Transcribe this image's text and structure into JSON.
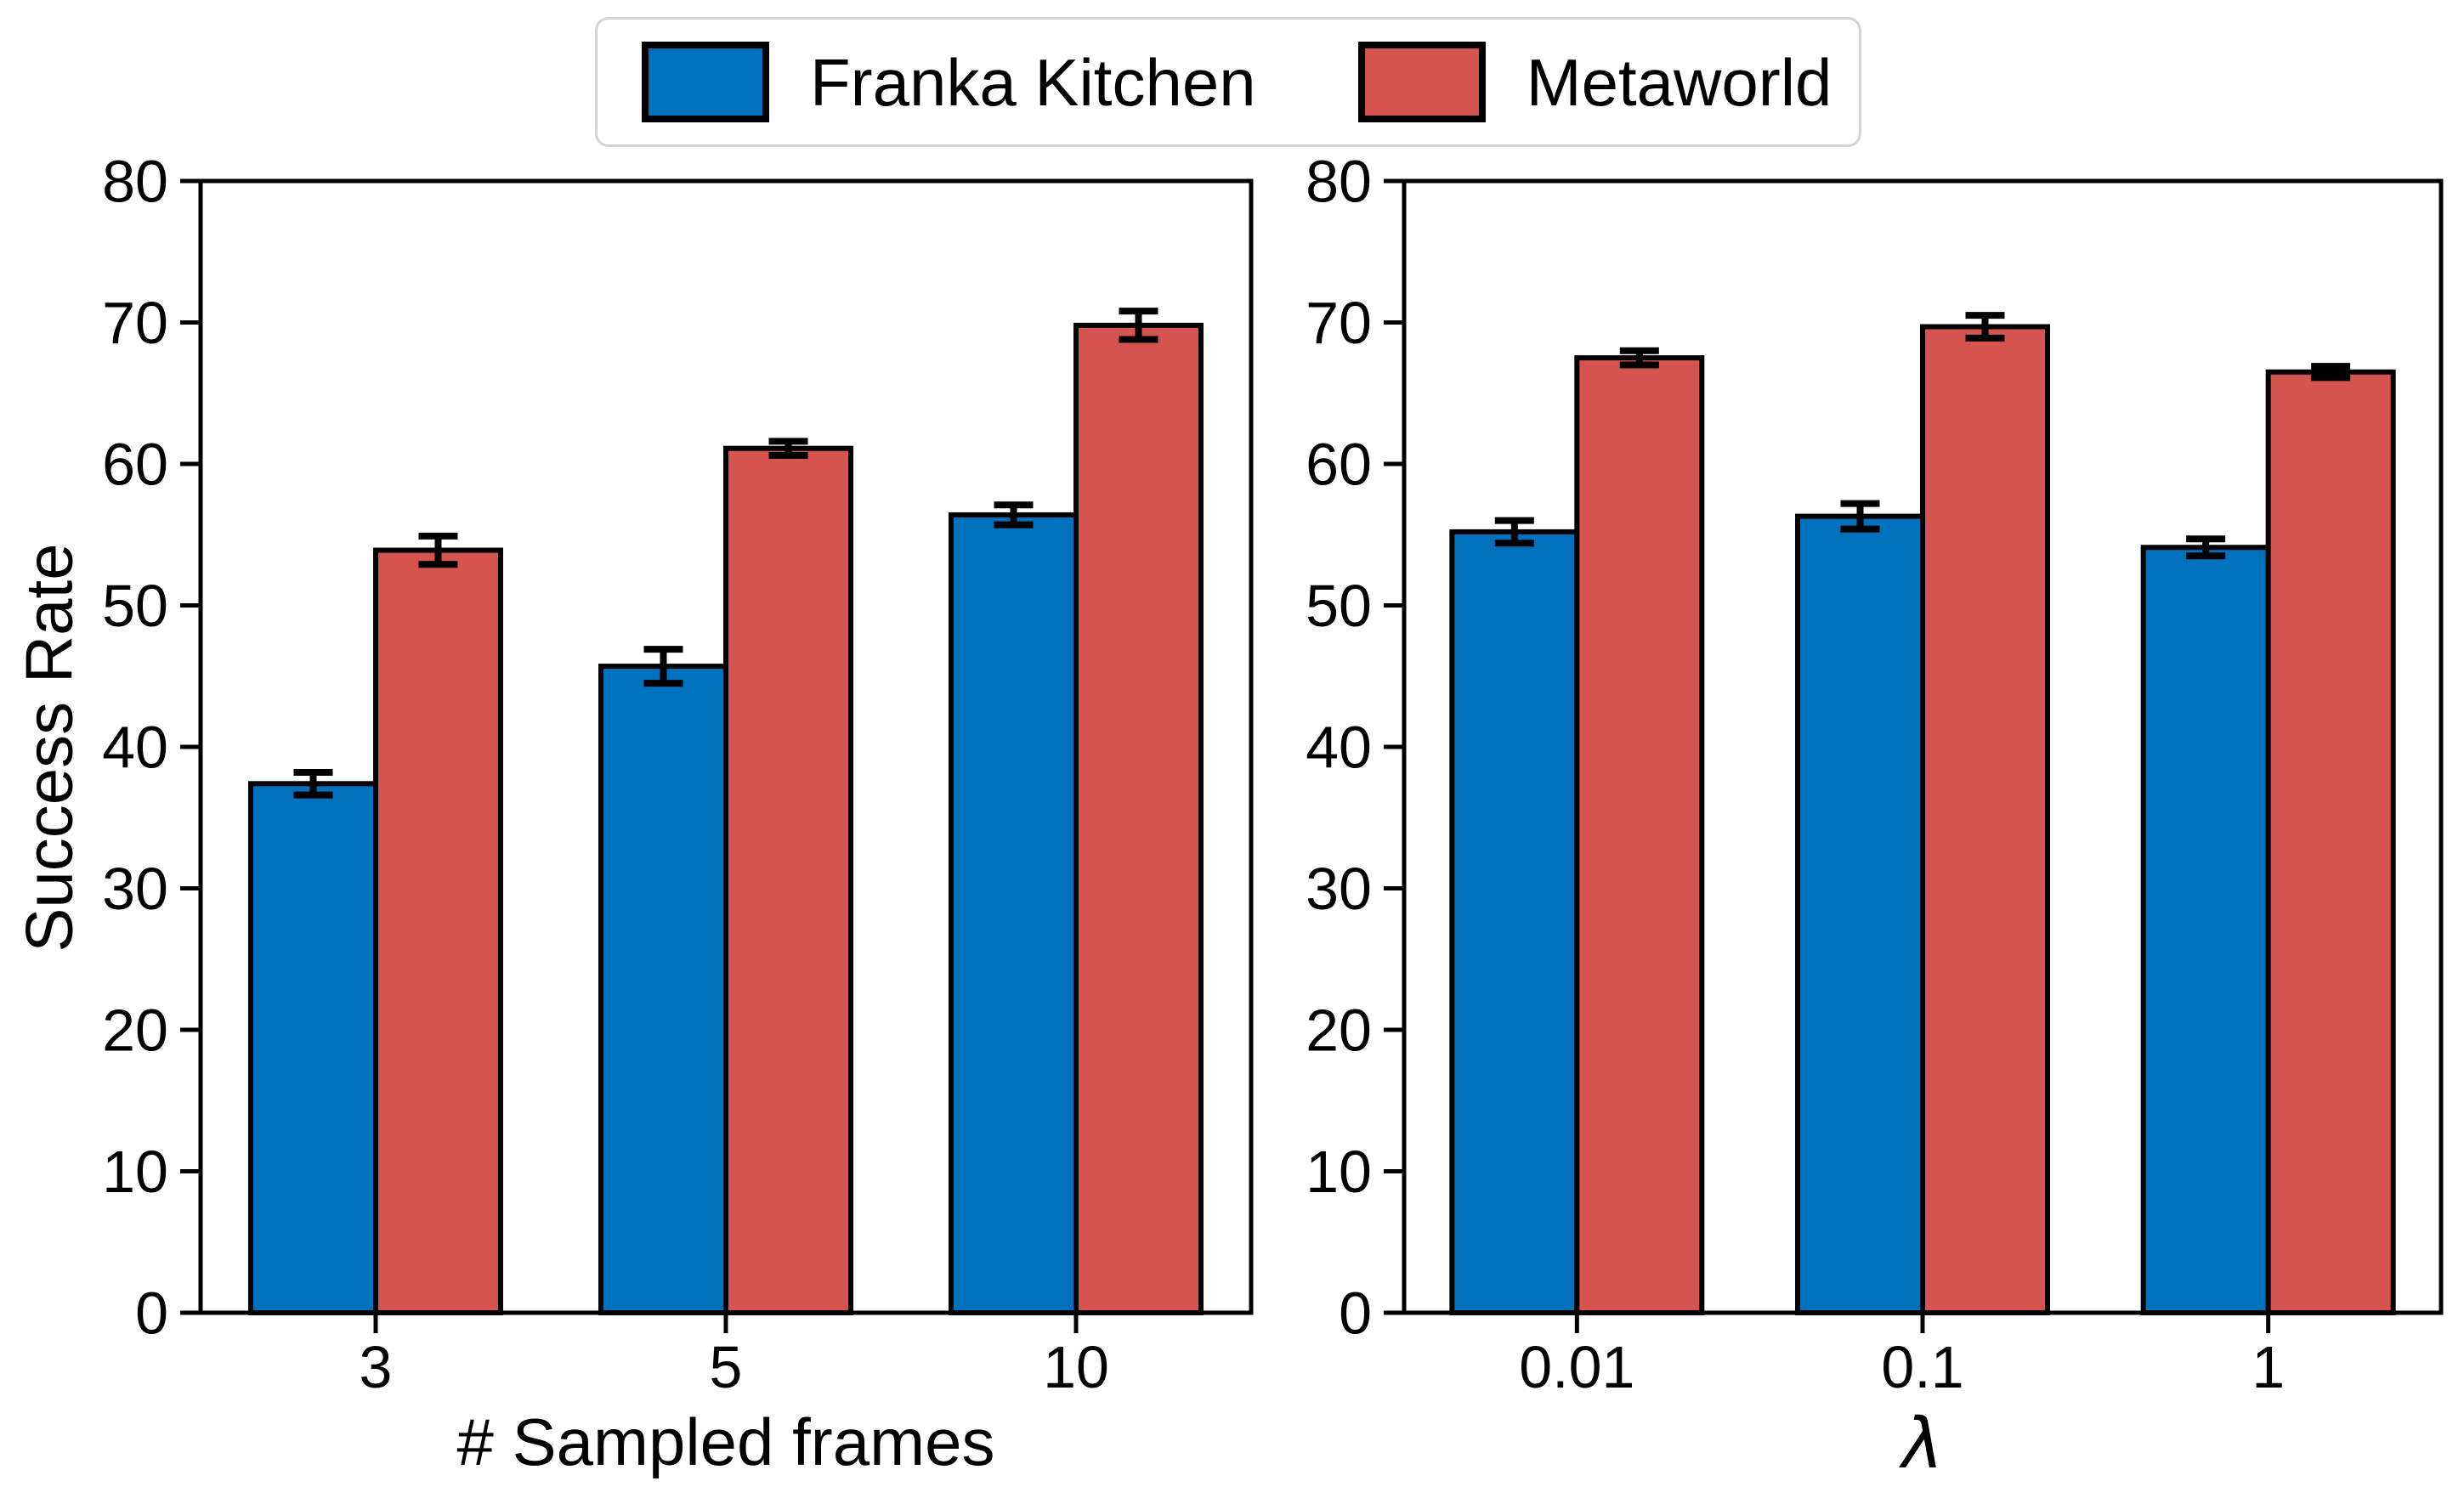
{
  "figure": {
    "background": "#ffffff",
    "axis_color": "#000000",
    "bar_edge_color": "#000000"
  },
  "legend": {
    "items": [
      {
        "label": "Franka Kitchen",
        "color": "#0071bc",
        "swatch": "blue-filled-rect"
      },
      {
        "label": "Metaworld",
        "color": "#d6544f",
        "swatch": "red-filled-rect"
      }
    ]
  },
  "chart_data": [
    {
      "type": "bar",
      "title": "",
      "xlabel": "# Sampled frames",
      "xlabel_italic": false,
      "ylabel": "Success Rate",
      "categories": [
        "3",
        "5",
        "10"
      ],
      "yticks": [
        "0",
        "10",
        "20",
        "30",
        "40",
        "50",
        "60",
        "70",
        "80"
      ],
      "ylim": [
        0,
        80
      ],
      "grid": false,
      "error_bars": true,
      "legend_position": "top-center-above-figure",
      "series": [
        {
          "name": "Franka Kitchen",
          "color": "#0071bc",
          "values": [
            37.4,
            45.7,
            56.4
          ],
          "errors": [
            0.8,
            1.2,
            0.7
          ]
        },
        {
          "name": "Metaworld",
          "color": "#d6544f",
          "values": [
            53.9,
            61.1,
            69.8
          ],
          "errors": [
            1.0,
            0.5,
            1.0
          ]
        }
      ]
    },
    {
      "type": "bar",
      "title": "",
      "xlabel": "λ",
      "xlabel_italic": true,
      "ylabel": "",
      "categories": [
        "0.01",
        "0.1",
        "1"
      ],
      "yticks": [
        "0",
        "10",
        "20",
        "30",
        "40",
        "50",
        "60",
        "70",
        "80"
      ],
      "ylim": [
        0,
        80
      ],
      "grid": false,
      "error_bars": true,
      "series": [
        {
          "name": "Franka Kitchen",
          "color": "#0071bc",
          "values": [
            55.2,
            56.3,
            54.1
          ],
          "errors": [
            0.8,
            0.9,
            0.6
          ]
        },
        {
          "name": "Metaworld",
          "color": "#d6544f",
          "values": [
            67.5,
            69.7,
            66.5
          ],
          "errors": [
            0.5,
            0.8,
            0.4
          ]
        }
      ]
    }
  ]
}
